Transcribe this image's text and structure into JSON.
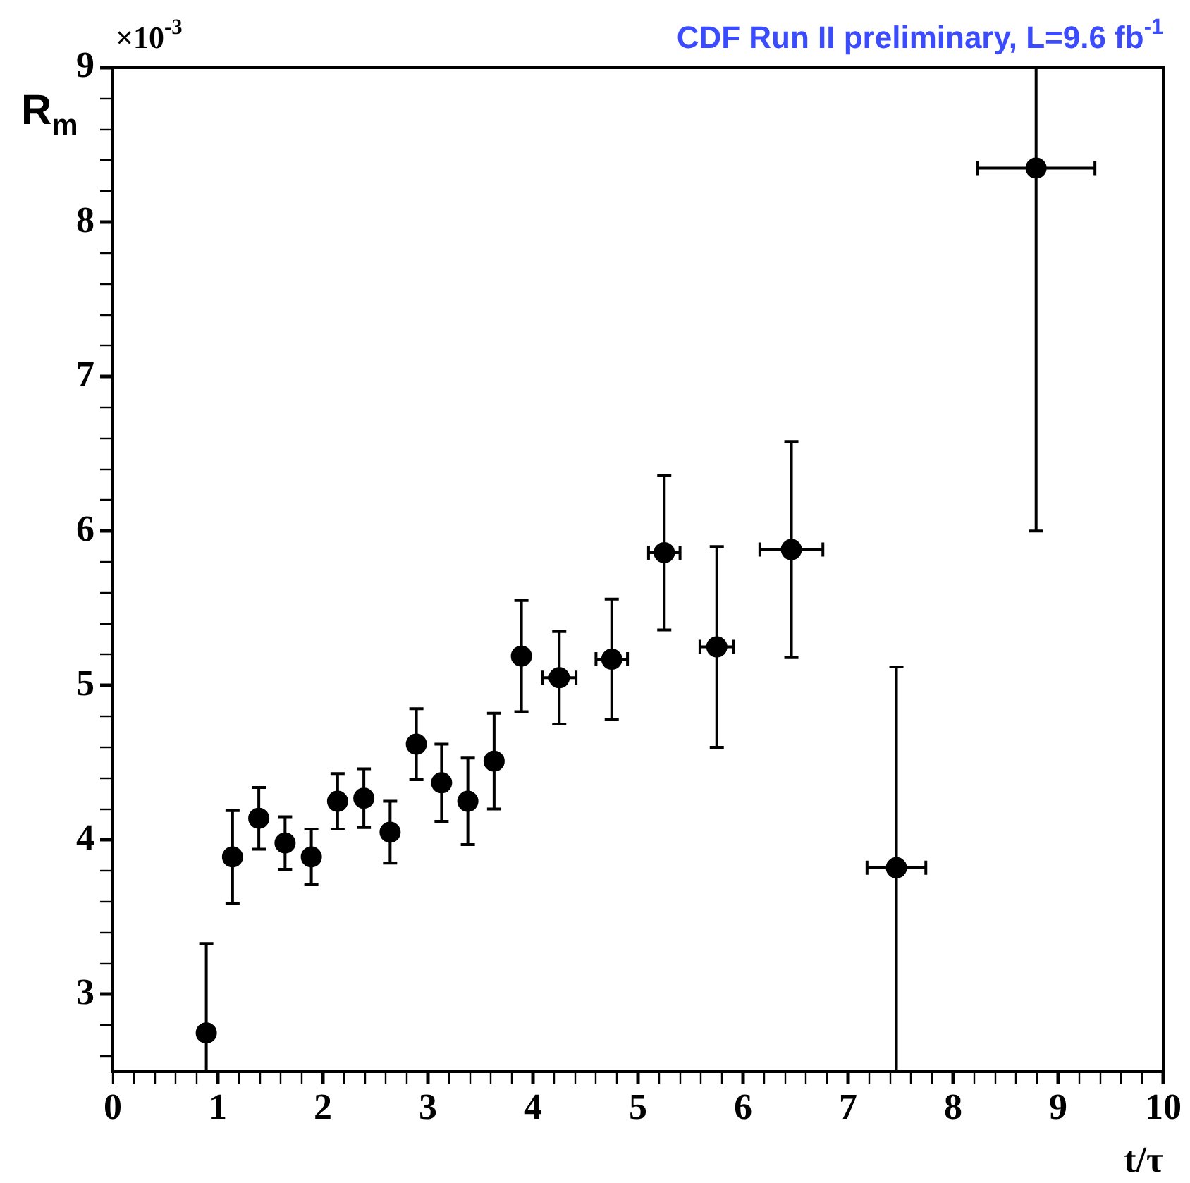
{
  "chart_data": {
    "type": "scatter",
    "title": "CDF Run II preliminary, L=9.6 fb$^{-1}$",
    "xlabel": "t/τ",
    "ylabel": "R$_{m}$",
    "annotations": [
      "×10$^{-3}$"
    ],
    "x": [
      0.89,
      1.14,
      1.39,
      1.64,
      1.89,
      2.14,
      2.39,
      2.64,
      2.89,
      3.13,
      3.38,
      3.63,
      3.89,
      4.25,
      4.75,
      5.25,
      5.75,
      6.46,
      7.46,
      8.79
    ],
    "series": [
      {
        "color": "#000000",
        "values": [
          2.75,
          3.89,
          4.14,
          3.98,
          3.89,
          4.25,
          4.27,
          4.05,
          4.62,
          4.37,
          4.25,
          4.51,
          5.19,
          5.05,
          5.17,
          5.86,
          5.25,
          5.88,
          3.82,
          8.35
        ],
        "errors": [
          [
            2.5,
            3.33
          ],
          0.3,
          0.2,
          0.17,
          0.18,
          0.18,
          0.19,
          0.2,
          0.23,
          0.25,
          0.28,
          0.31,
          0.36,
          0.3,
          0.39,
          0.5,
          0.65,
          0.7,
          [
            2.5,
            5.12
          ],
          [
            6.0,
            9
          ]
        ],
        "xerrors": [
          null,
          null,
          null,
          null,
          null,
          null,
          null,
          null,
          null,
          null,
          null,
          null,
          null,
          0.16,
          0.15,
          0.15,
          0.16,
          0.3,
          0.28,
          0.56
        ]
      }
    ],
    "marker": "circle",
    "grid": false,
    "legend": false,
    "xlim": [
      0,
      10
    ],
    "ylim": [
      2.5,
      9
    ],
    "xticks": [
      0,
      {
        "value": 0.2,
        "label": null
      },
      {
        "value": 0.4,
        "label": null
      },
      {
        "value": 0.6,
        "label": null
      },
      {
        "value": 0.8,
        "label": null
      },
      1,
      {
        "value": 1.2,
        "label": null
      },
      {
        "value": 1.4,
        "label": null
      },
      {
        "value": 1.6,
        "label": null
      },
      {
        "value": 1.8,
        "label": null
      },
      2,
      {
        "value": 2.2,
        "label": null
      },
      {
        "value": 2.4,
        "label": null
      },
      {
        "value": 2.6,
        "label": null
      },
      {
        "value": 2.8,
        "label": null
      },
      3,
      {
        "value": 3.2,
        "label": null
      },
      {
        "value": 3.4,
        "label": null
      },
      {
        "value": 3.6,
        "label": null
      },
      {
        "value": 3.8,
        "label": null
      },
      4,
      {
        "value": 4.2,
        "label": null
      },
      {
        "value": 4.4,
        "label": null
      },
      {
        "value": 4.6,
        "label": null
      },
      {
        "value": 4.8,
        "label": null
      },
      5,
      {
        "value": 5.2,
        "label": null
      },
      {
        "value": 5.4,
        "label": null
      },
      {
        "value": 5.6,
        "label": null
      },
      {
        "value": 5.8,
        "label": null
      },
      6,
      {
        "value": 6.2,
        "label": null
      },
      {
        "value": 6.4,
        "label": null
      },
      {
        "value": 6.6,
        "label": null
      },
      {
        "value": 6.8,
        "label": null
      },
      7,
      {
        "value": 7.2,
        "label": null
      },
      {
        "value": 7.4,
        "label": null
      },
      {
        "value": 7.6,
        "label": null
      },
      {
        "value": 7.8,
        "label": null
      },
      8,
      {
        "value": 8.2,
        "label": null
      },
      {
        "value": 8.4,
        "label": null
      },
      {
        "value": 8.6,
        "label": null
      },
      {
        "value": 8.8,
        "label": null
      },
      9,
      {
        "value": 9.2,
        "label": null
      },
      {
        "value": 9.4,
        "label": null
      },
      {
        "value": 9.6,
        "label": null
      },
      {
        "value": 9.8,
        "label": null
      },
      10
    ],
    "yticks": [
      {
        "value": 2.6,
        "label": null
      },
      {
        "value": 2.8,
        "label": null
      },
      3,
      {
        "value": 3.2,
        "label": null
      },
      {
        "value": 3.4,
        "label": null
      },
      {
        "value": 3.6,
        "label": null
      },
      {
        "value": 3.8,
        "label": null
      },
      4,
      {
        "value": 4.2,
        "label": null
      },
      {
        "value": 4.4,
        "label": null
      },
      {
        "value": 4.6,
        "label": null
      },
      {
        "value": 4.8,
        "label": null
      },
      5,
      {
        "value": 5.2,
        "label": null
      },
      {
        "value": 5.4,
        "label": null
      },
      {
        "value": 5.6,
        "label": null
      },
      {
        "value": 5.8,
        "label": null
      },
      6,
      {
        "value": 6.2,
        "label": null
      },
      {
        "value": 6.4,
        "label": null
      },
      {
        "value": 6.6,
        "label": null
      },
      {
        "value": 6.8,
        "label": null
      },
      7,
      {
        "value": 7.2,
        "label": null
      },
      {
        "value": 7.4,
        "label": null
      },
      {
        "value": 7.6,
        "label": null
      },
      {
        "value": 7.8,
        "label": null
      },
      8,
      {
        "value": 8.2,
        "label": null
      },
      {
        "value": 8.4,
        "label": null
      },
      {
        "value": 8.6,
        "label": null
      },
      {
        "value": 8.8,
        "label": null
      },
      9
    ]
  }
}
